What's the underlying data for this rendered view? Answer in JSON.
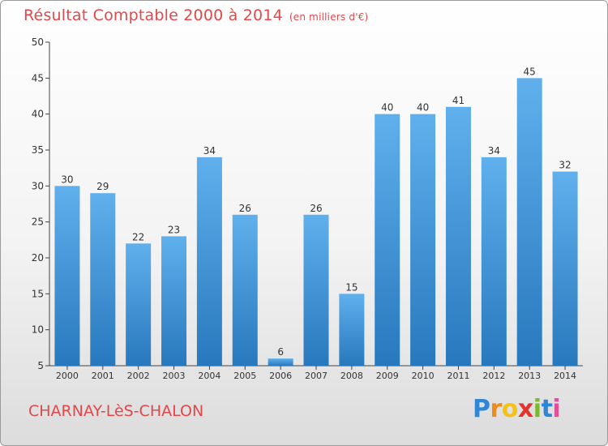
{
  "title": "Résultat Comptable 2000 à 2014",
  "unit_label": "(en milliers d'€)",
  "commune": "CHARNAY-LèS-CHALON",
  "logo_text": "Proxiti",
  "colors": {
    "title": "#e2474a",
    "bar_top": "#5fb0ec",
    "bar_bottom": "#2878be",
    "axis_text": "#333333"
  },
  "chart_data": {
    "type": "bar",
    "categories": [
      "2000",
      "2001",
      "2002",
      "2003",
      "2004",
      "2005",
      "2006",
      "2007",
      "2008",
      "2009",
      "2010",
      "2011",
      "2012",
      "2013",
      "2014"
    ],
    "values": [
      30,
      29,
      22,
      23,
      34,
      26,
      6,
      26,
      15,
      40,
      40,
      41,
      34,
      45,
      32
    ],
    "ylim": [
      5,
      50
    ],
    "yticks": [
      5,
      10,
      15,
      20,
      25,
      30,
      35,
      40,
      45,
      50
    ],
    "grid": false,
    "legend": "none"
  }
}
